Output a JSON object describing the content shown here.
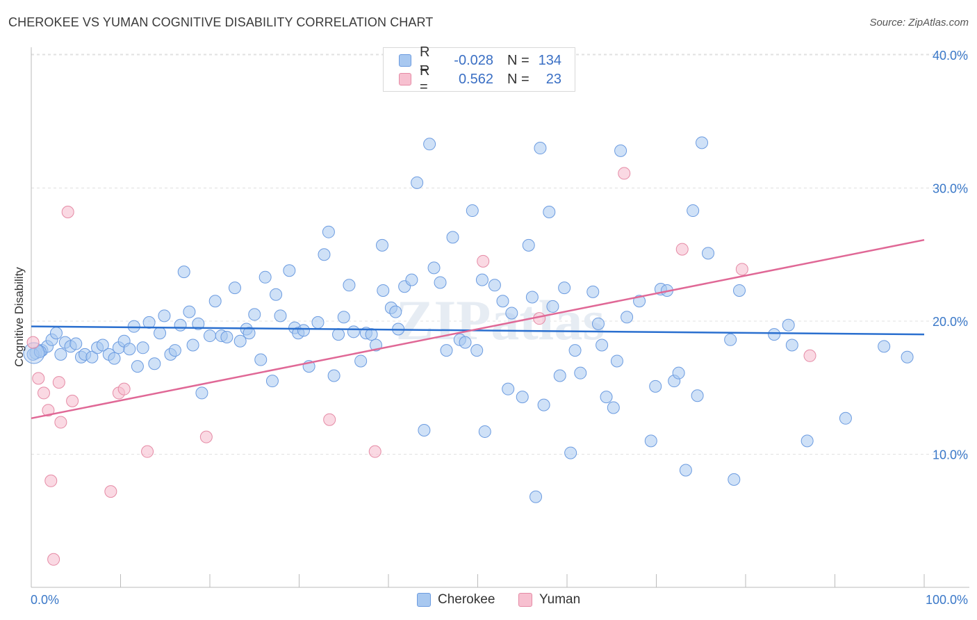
{
  "title": "CHEROKEE VS YUMAN COGNITIVE DISABILITY CORRELATION CHART",
  "source": "Source: ZipAtlas.com",
  "legend": {
    "rows": [
      {
        "r_label": "R =",
        "r_value": "-0.028",
        "n_label": "N =",
        "n_value": "134",
        "color": "#a8c8f0",
        "border": "#6b9be0"
      },
      {
        "r_label": "R =",
        "r_value": "0.562",
        "n_label": "N =",
        "n_value": "23",
        "color": "#f7c0d0",
        "border": "#e58aa5"
      }
    ]
  },
  "bottom_legend": [
    {
      "label": "Cherokee",
      "color": "#a8c8f0",
      "border": "#6b9be0"
    },
    {
      "label": "Yuman",
      "color": "#f7c0d0",
      "border": "#e58aa5"
    }
  ],
  "colors": {
    "cherokee_fill": "#a8c8f0",
    "cherokee_line": "#2a6fcf",
    "yuman_fill": "#f7c0d0",
    "yuman_line": "#e06896",
    "tick_text": "#3a78c8",
    "grid": "#e0e0e0"
  },
  "chart_data": {
    "type": "scatter",
    "ylabel": "Cognitive Disability",
    "xlabel": "",
    "xlim": [
      0,
      100
    ],
    "ylim": [
      0,
      40
    ],
    "x_ticks": [
      "0.0%",
      "100.0%"
    ],
    "y_ticks": [
      {
        "value": 10,
        "label": "10.0%"
      },
      {
        "value": 20,
        "label": "20.0%"
      },
      {
        "value": 30,
        "label": "30.0%"
      },
      {
        "value": 40,
        "label": "40.0%"
      }
    ],
    "watermark": "ZIPatlas",
    "series": [
      {
        "name": "Cherokee",
        "trend": [
          [
            0,
            19.6
          ],
          [
            100,
            19.0
          ]
        ],
        "points": [
          [
            0.5,
            17.6
          ],
          [
            1.2,
            17.8
          ],
          [
            1.8,
            18.1
          ],
          [
            2.3,
            18.6
          ],
          [
            2.8,
            19.1
          ],
          [
            3.3,
            17.5
          ],
          [
            3.8,
            18.4
          ],
          [
            4.4,
            18.1
          ],
          [
            5.0,
            18.3
          ],
          [
            5.6,
            17.3
          ],
          [
            6.0,
            17.5
          ],
          [
            6.8,
            17.3
          ],
          [
            7.4,
            18.0
          ],
          [
            8.0,
            18.2
          ],
          [
            8.7,
            17.5
          ],
          [
            9.3,
            17.2
          ],
          [
            9.8,
            18.0
          ],
          [
            10.4,
            18.5
          ],
          [
            11.0,
            17.9
          ],
          [
            11.5,
            19.6
          ],
          [
            11.9,
            16.6
          ],
          [
            12.5,
            18.0
          ],
          [
            13.2,
            19.9
          ],
          [
            13.8,
            16.8
          ],
          [
            14.4,
            19.1
          ],
          [
            14.9,
            20.4
          ],
          [
            15.6,
            17.5
          ],
          [
            16.1,
            17.8
          ],
          [
            16.7,
            19.7
          ],
          [
            17.1,
            23.7
          ],
          [
            17.7,
            20.7
          ],
          [
            18.1,
            18.2
          ],
          [
            18.7,
            19.8
          ],
          [
            19.1,
            14.6
          ],
          [
            20.0,
            18.9
          ],
          [
            20.6,
            21.5
          ],
          [
            21.3,
            18.9
          ],
          [
            21.9,
            18.8
          ],
          [
            22.8,
            22.5
          ],
          [
            23.4,
            18.5
          ],
          [
            24.1,
            19.4
          ],
          [
            24.4,
            19.1
          ],
          [
            25.0,
            20.5
          ],
          [
            25.7,
            17.1
          ],
          [
            26.2,
            23.3
          ],
          [
            27.0,
            15.5
          ],
          [
            27.4,
            22.0
          ],
          [
            27.9,
            20.4
          ],
          [
            28.9,
            23.8
          ],
          [
            29.5,
            19.5
          ],
          [
            29.9,
            19.1
          ],
          [
            30.5,
            19.3
          ],
          [
            31.1,
            16.6
          ],
          [
            32.1,
            19.9
          ],
          [
            32.8,
            25.0
          ],
          [
            33.3,
            26.7
          ],
          [
            33.9,
            15.9
          ],
          [
            34.4,
            19.0
          ],
          [
            35.0,
            20.3
          ],
          [
            35.6,
            22.7
          ],
          [
            36.1,
            19.2
          ],
          [
            36.9,
            17.0
          ],
          [
            37.5,
            19.1
          ],
          [
            38.1,
            19.0
          ],
          [
            38.6,
            18.2
          ],
          [
            39.3,
            25.7
          ],
          [
            39.4,
            22.3
          ],
          [
            40.3,
            21.0
          ],
          [
            40.8,
            20.7
          ],
          [
            41.1,
            19.4
          ],
          [
            41.8,
            22.6
          ],
          [
            42.6,
            23.1
          ],
          [
            43.2,
            30.4
          ],
          [
            44.0,
            11.8
          ],
          [
            44.6,
            33.3
          ],
          [
            45.1,
            24.0
          ],
          [
            45.8,
            22.9
          ],
          [
            46.5,
            17.8
          ],
          [
            47.2,
            26.3
          ],
          [
            48.0,
            18.6
          ],
          [
            48.6,
            18.4
          ],
          [
            49.4,
            28.3
          ],
          [
            49.9,
            17.8
          ],
          [
            50.5,
            23.1
          ],
          [
            50.8,
            11.7
          ],
          [
            51.9,
            22.7
          ],
          [
            52.8,
            21.5
          ],
          [
            53.4,
            14.9
          ],
          [
            53.8,
            20.6
          ],
          [
            55.0,
            14.3
          ],
          [
            55.7,
            25.7
          ],
          [
            56.1,
            21.8
          ],
          [
            56.5,
            6.8
          ],
          [
            57.0,
            33.0
          ],
          [
            57.4,
            13.7
          ],
          [
            58.0,
            28.2
          ],
          [
            58.4,
            21.1
          ],
          [
            59.2,
            15.9
          ],
          [
            59.7,
            22.5
          ],
          [
            60.4,
            10.1
          ],
          [
            60.9,
            17.8
          ],
          [
            61.5,
            16.1
          ],
          [
            62.9,
            22.2
          ],
          [
            63.5,
            19.8
          ],
          [
            63.9,
            18.2
          ],
          [
            64.4,
            14.3
          ],
          [
            65.2,
            13.5
          ],
          [
            65.6,
            17.0
          ],
          [
            66.0,
            32.8
          ],
          [
            66.7,
            20.3
          ],
          [
            68.1,
            21.5
          ],
          [
            69.4,
            11.0
          ],
          [
            69.9,
            15.1
          ],
          [
            70.5,
            22.4
          ],
          [
            71.2,
            22.3
          ],
          [
            72.0,
            15.5
          ],
          [
            72.5,
            16.1
          ],
          [
            73.3,
            8.8
          ],
          [
            74.1,
            28.3
          ],
          [
            74.6,
            14.4
          ],
          [
            75.1,
            33.4
          ],
          [
            75.8,
            25.1
          ],
          [
            78.3,
            18.6
          ],
          [
            78.7,
            8.1
          ],
          [
            79.3,
            22.3
          ],
          [
            83.2,
            19.0
          ],
          [
            84.8,
            19.7
          ],
          [
            85.2,
            18.2
          ],
          [
            95.5,
            18.1
          ],
          [
            98.1,
            17.3
          ],
          [
            86.9,
            11.0
          ],
          [
            91.2,
            12.7
          ],
          [
            0.2,
            17.5
          ],
          [
            1.0,
            17.7
          ]
        ]
      },
      {
        "name": "Yuman",
        "trend": [
          [
            0,
            12.7
          ],
          [
            100,
            26.1
          ]
        ],
        "points": [
          [
            0.2,
            18.4
          ],
          [
            0.8,
            15.7
          ],
          [
            1.4,
            14.6
          ],
          [
            1.9,
            13.3
          ],
          [
            2.2,
            8.0
          ],
          [
            2.5,
            2.1
          ],
          [
            3.1,
            15.4
          ],
          [
            3.3,
            12.4
          ],
          [
            4.1,
            28.2
          ],
          [
            4.6,
            14.0
          ],
          [
            8.9,
            7.2
          ],
          [
            9.8,
            14.6
          ],
          [
            10.4,
            14.9
          ],
          [
            13.0,
            10.2
          ],
          [
            19.6,
            11.3
          ],
          [
            33.4,
            12.6
          ],
          [
            38.5,
            10.2
          ],
          [
            50.6,
            24.5
          ],
          [
            56.9,
            20.2
          ],
          [
            66.4,
            31.1
          ],
          [
            72.9,
            25.4
          ],
          [
            79.6,
            23.9
          ],
          [
            87.2,
            17.4
          ]
        ]
      }
    ]
  }
}
